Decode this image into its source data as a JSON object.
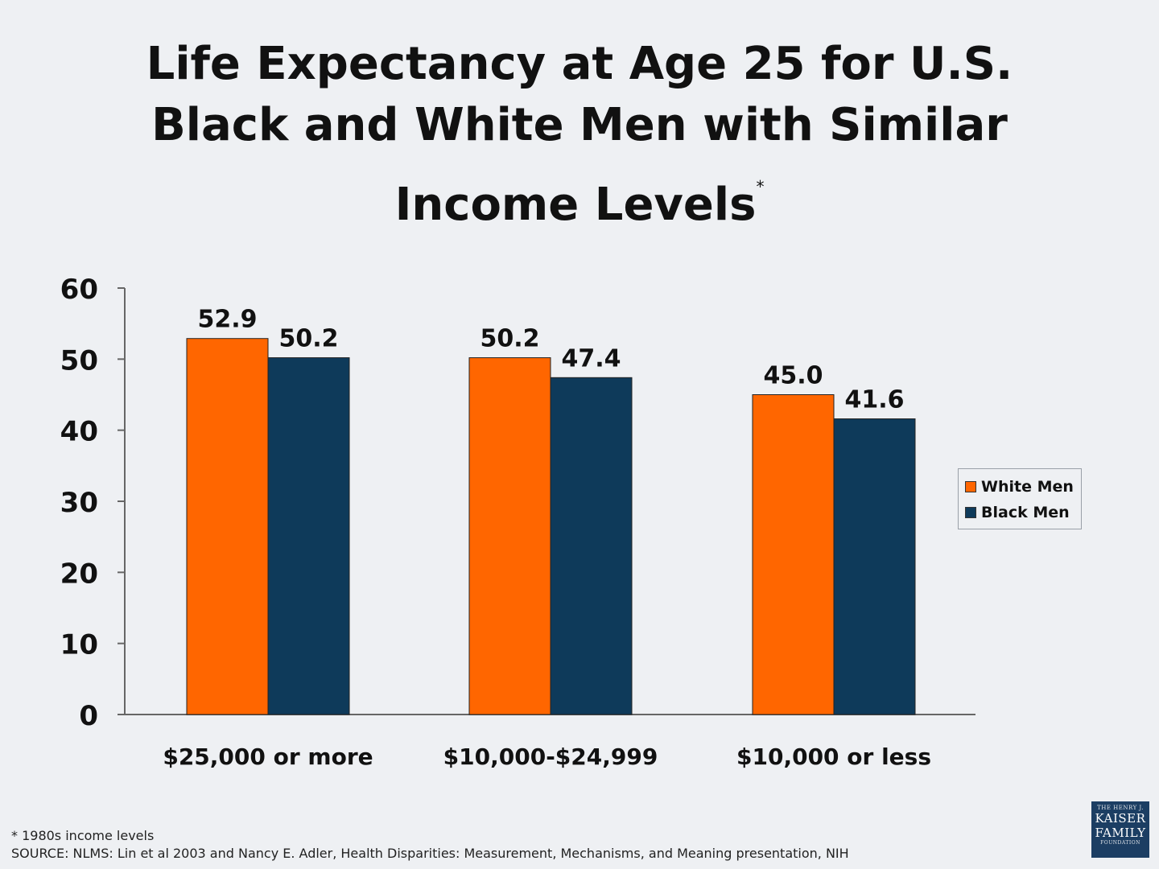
{
  "header": {
    "title_line1": "Life Expectancy at Age 25 for U.S.",
    "title_line2": "Black and White Men with Similar",
    "title_line3": "Income Levels",
    "title_marker": "*"
  },
  "chart_data": {
    "type": "bar",
    "title": "Life Expectancy at Age 25 for U.S. Black and White Men with Similar Income Levels*",
    "categories": [
      "$25,000 or more",
      "$10,000-$24,999",
      "$10,000 or less"
    ],
    "series": [
      {
        "name": "White Men",
        "values": [
          52.9,
          50.2,
          45.0
        ],
        "labels": [
          "52.9",
          "50.2",
          "45.0"
        ],
        "color": "#ff6600"
      },
      {
        "name": "Black Men",
        "values": [
          50.2,
          47.4,
          41.6
        ],
        "labels": [
          "50.2",
          "47.4",
          "41.6"
        ],
        "color": "#0e3a5a"
      }
    ],
    "ylim": [
      0,
      60
    ],
    "yticks": [
      "0",
      "10",
      "20",
      "30",
      "40",
      "50",
      "60"
    ],
    "grid": false,
    "legend_position": "right"
  },
  "footer": {
    "footnote": "* 1980s income levels",
    "source": "SOURCE: NLMS: Lin et al 2003 and Nancy E. Adler, Health Disparities: Measurement, Mechanisms, and Meaning presentation, NIH"
  },
  "logo": {
    "line1": "THE HENRY J.",
    "line2": "KAISER",
    "line3": "FAMILY",
    "line4": "FOUNDATION"
  }
}
